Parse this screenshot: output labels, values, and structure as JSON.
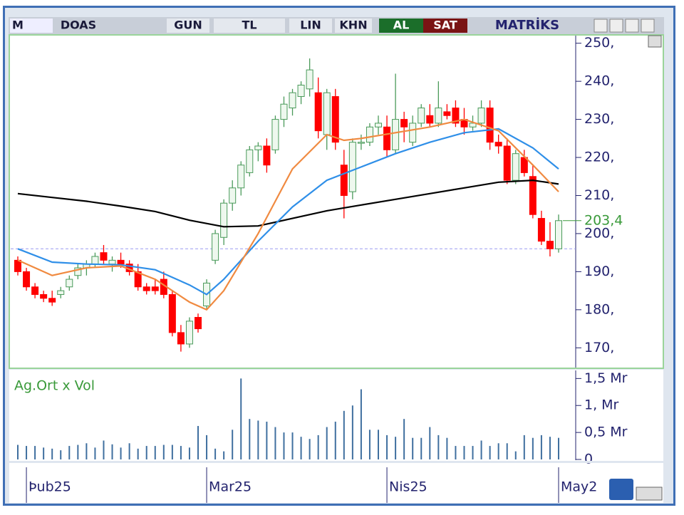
{
  "toolbar": {
    "menu": "M",
    "symbol": "DOAS",
    "period": "GUN",
    "currency": "TL",
    "scale": "LIN",
    "chart_type": "KHN",
    "buy": "AL",
    "sell": "SAT",
    "brand": "MATRİKS"
  },
  "chart_data": [
    {
      "type": "candlestick",
      "open": [
        193,
        190,
        186,
        184,
        183,
        184,
        186,
        189,
        191,
        192,
        195,
        192,
        193,
        192,
        190,
        186,
        186,
        188,
        184,
        174,
        171,
        178,
        181,
        193,
        199,
        208,
        212,
        216,
        222,
        223,
        222,
        230,
        233,
        236,
        238,
        237,
        226,
        236,
        218,
        211,
        224,
        224,
        228,
        228,
        222,
        230,
        224,
        229,
        231,
        229,
        232,
        233,
        230,
        228,
        229,
        233,
        224,
        223,
        214,
        220,
        215,
        204,
        198,
        196
      ],
      "high": [
        194,
        191,
        187,
        185,
        185,
        186,
        189,
        192,
        193,
        195,
        197,
        194,
        195,
        193,
        192,
        187,
        188,
        190,
        185,
        176,
        178,
        179,
        188,
        201,
        209,
        214,
        219,
        223,
        224,
        225,
        231,
        236,
        238,
        240,
        246,
        241,
        238,
        238,
        222,
        225,
        226,
        229,
        231,
        231,
        242,
        232,
        231,
        234,
        234,
        240,
        234,
        235,
        233,
        231,
        235,
        235,
        226,
        225,
        222,
        222,
        218,
        206,
        203,
        205
      ],
      "low": [
        189,
        185,
        183,
        182,
        181,
        183,
        185,
        188,
        189,
        191,
        192,
        190,
        191,
        189,
        185,
        184,
        184,
        183,
        173,
        169,
        170,
        174,
        180,
        192,
        197,
        206,
        210,
        215,
        219,
        216,
        221,
        228,
        231,
        234,
        236,
        225,
        222,
        222,
        204,
        209,
        222,
        223,
        226,
        220,
        221,
        224,
        223,
        228,
        228,
        228,
        230,
        228,
        226,
        227,
        228,
        222,
        221,
        213,
        213,
        215,
        204,
        197,
        194,
        195
      ],
      "close": [
        190,
        186,
        184,
        183,
        182,
        185,
        188,
        191,
        192,
        194,
        193,
        193,
        192,
        190,
        186,
        185,
        185,
        184,
        174,
        171,
        177,
        175,
        187,
        200,
        208,
        212,
        218,
        222,
        223,
        218,
        230,
        234,
        237,
        239,
        243,
        227,
        237,
        224,
        210,
        224,
        224,
        228,
        229,
        222,
        230,
        228,
        229,
        233,
        229,
        233,
        231,
        229,
        228,
        229,
        233,
        224,
        223,
        214,
        221,
        216,
        205,
        198,
        196,
        203.4
      ],
      "up_color": "#4a9a5a",
      "down_color": "#ff0000",
      "ma_series": [
        {
          "color": "#000000",
          "x": [
            0,
            4,
            8,
            12,
            16,
            20,
            24,
            28,
            32,
            36,
            40,
            44,
            48,
            52,
            56,
            60,
            63
          ],
          "values": [
            210.5,
            209.5,
            208.5,
            207.2,
            205.8,
            203.5,
            201.8,
            202,
            204,
            206,
            207.5,
            209,
            210.5,
            212,
            213.5,
            214,
            213
          ]
        },
        {
          "color": "#2f8fe8",
          "x": [
            0,
            4,
            8,
            12,
            16,
            20,
            22,
            24,
            28,
            32,
            36,
            40,
            44,
            48,
            52,
            56,
            60,
            63
          ],
          "values": [
            196,
            192.5,
            192,
            191.8,
            190.5,
            186.5,
            184,
            188,
            198,
            207,
            214,
            217.5,
            221,
            224,
            226.5,
            227.5,
            222.5,
            217
          ]
        },
        {
          "color": "#f08a40",
          "x": [
            0,
            4,
            8,
            12,
            16,
            20,
            22,
            24,
            28,
            32,
            36,
            38,
            40,
            44,
            48,
            52,
            56,
            60,
            63
          ],
          "values": [
            193,
            189,
            191,
            191.5,
            188,
            182,
            180,
            185,
            200,
            217,
            226,
            224.5,
            225,
            226.5,
            228,
            230,
            227,
            218,
            211
          ]
        }
      ],
      "reference_line": 196,
      "last_value": {
        "value": 203.4,
        "label": "203,4"
      },
      "ylim": [
        165,
        252
      ],
      "yticks": [
        {
          "value": 170,
          "label": "170,"
        },
        {
          "value": 180,
          "label": "180,"
        },
        {
          "value": 190,
          "label": "190,"
        },
        {
          "value": 200,
          "label": "200,"
        },
        {
          "value": 210,
          "label": "210,"
        },
        {
          "value": 220,
          "label": "220,"
        },
        {
          "value": 230,
          "label": "230,"
        },
        {
          "value": 240,
          "label": "240,"
        },
        {
          "value": 250,
          "label": "250,"
        }
      ],
      "xlim": [
        -0.5,
        63.5
      ],
      "xticks": [
        {
          "value": 1,
          "label": "Þub25"
        },
        {
          "value": 22,
          "label": "Mar25"
        },
        {
          "value": 43,
          "label": "Nis25"
        },
        {
          "value": 63,
          "label": "May2"
        }
      ]
    },
    {
      "type": "bar",
      "title": "Ag.Ort x Vol",
      "color": "#3f6f9f",
      "values": [
        0.27,
        0.25,
        0.25,
        0.22,
        0.2,
        0.17,
        0.25,
        0.27,
        0.3,
        0.22,
        0.35,
        0.28,
        0.22,
        0.3,
        0.2,
        0.25,
        0.25,
        0.27,
        0.27,
        0.25,
        0.22,
        0.62,
        0.45,
        0.2,
        0.15,
        0.55,
        1.5,
        0.75,
        0.72,
        0.7,
        0.6,
        0.5,
        0.5,
        0.42,
        0.38,
        0.45,
        0.6,
        0.7,
        0.9,
        1.0,
        1.3,
        0.55,
        0.55,
        0.45,
        0.42,
        0.75,
        0.4,
        0.4,
        0.6,
        0.45,
        0.4,
        0.25,
        0.25,
        0.25,
        0.35,
        0.25,
        0.3,
        0.3,
        0.15,
        0.45,
        0.4,
        0.45,
        0.42,
        0.4
      ],
      "ylim": [
        0,
        1.65
      ],
      "yticks": [
        {
          "value": 0,
          "label": "0"
        },
        {
          "value": 0.5,
          "label": "0,5 Mr"
        },
        {
          "value": 1,
          "label": "1, Mr"
        },
        {
          "value": 1.5,
          "label": "1,5 Mr"
        }
      ]
    }
  ]
}
